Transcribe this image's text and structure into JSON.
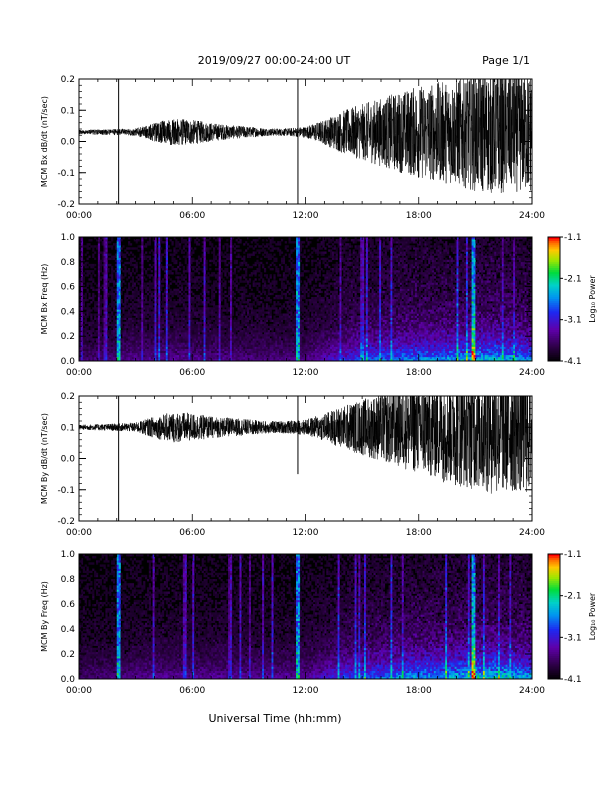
{
  "header": {
    "title": "2019/09/27  00:00-24:00 UT",
    "page": "Page 1/1"
  },
  "chart_data": [
    {
      "type": "line",
      "ylabel": "MCM Bx dB/dt (nT/sec)",
      "xlim": [
        0,
        24
      ],
      "ylim": [
        -0.2,
        0.2
      ],
      "x_ticks": [
        "00:00",
        "06:00",
        "12:00",
        "18:00",
        "24:00"
      ],
      "y_ticks": [
        "-0.2",
        "-0.1",
        "0.0",
        "0.1",
        "0.2"
      ],
      "y_tick_values": [
        -0.2,
        -0.1,
        0.0,
        0.1,
        0.2
      ],
      "baseline": 0.03,
      "envelope": {
        "hours": [
          0,
          2,
          3,
          4,
          5,
          6,
          7,
          8,
          9,
          10,
          11,
          12,
          13,
          14,
          15,
          16,
          17,
          18,
          19,
          20,
          21,
          22,
          23,
          24
        ],
        "amplitude": [
          0.007,
          0.01,
          0.012,
          0.03,
          0.045,
          0.04,
          0.03,
          0.022,
          0.018,
          0.012,
          0.012,
          0.018,
          0.04,
          0.07,
          0.09,
          0.11,
          0.13,
          0.15,
          0.16,
          0.17,
          0.19,
          0.2,
          0.19,
          0.2
        ]
      },
      "spikes": [
        {
          "hour": 2.1,
          "min": -0.2,
          "max": 0.2
        },
        {
          "hour": 11.6,
          "min": -0.2,
          "max": 0.2
        }
      ]
    },
    {
      "type": "heatmap",
      "ylabel": "MCM Bx Freq (Hz)",
      "xlim": [
        0,
        24
      ],
      "ylim": [
        0,
        1.0
      ],
      "x_ticks": [
        "00:00",
        "06:00",
        "12:00",
        "18:00",
        "24:00"
      ],
      "y_ticks": [
        "0.0",
        "0.2",
        "0.4",
        "0.6",
        "0.8",
        "1.0"
      ],
      "y_tick_values": [
        0.0,
        0.2,
        0.4,
        0.6,
        0.8,
        1.0
      ],
      "colorbar": {
        "label": "Log₁₀ Power",
        "range": [
          -4.1,
          -1.1
        ],
        "ticks": [
          "-1.1",
          "-2.1",
          "-3.1",
          "-4.1"
        ],
        "tick_values": [
          -1.1,
          -2.1,
          -3.1,
          -4.1
        ]
      },
      "spike_hours": [
        2.1,
        11.6,
        20.9
      ],
      "activity_hours": [
        0,
        4,
        8,
        12,
        14,
        16,
        18,
        20,
        22,
        24
      ],
      "activity_level": [
        0.2,
        0.3,
        0.25,
        0.25,
        0.5,
        0.65,
        0.7,
        0.75,
        0.85,
        0.7
      ]
    },
    {
      "type": "line",
      "ylabel": "MCM By dB/dt (nT/sec)",
      "xlim": [
        0,
        24
      ],
      "ylim": [
        -0.2,
        0.2
      ],
      "x_ticks": [
        "00:00",
        "06:00",
        "12:00",
        "18:00",
        "24:00"
      ],
      "y_ticks": [
        "-0.2",
        "-0.1",
        "0.0",
        "0.1",
        "0.2"
      ],
      "y_tick_values": [
        -0.2,
        -0.1,
        0.0,
        0.1,
        0.2
      ],
      "baseline": 0.1,
      "envelope": {
        "hours": [
          0,
          2,
          3,
          4,
          5,
          6,
          7,
          8,
          9,
          10,
          11,
          12,
          13,
          14,
          15,
          16,
          17,
          18,
          19,
          20,
          21,
          22,
          23,
          24
        ],
        "amplitude": [
          0.008,
          0.012,
          0.015,
          0.035,
          0.05,
          0.045,
          0.035,
          0.03,
          0.025,
          0.02,
          0.02,
          0.025,
          0.045,
          0.07,
          0.09,
          0.11,
          0.13,
          0.15,
          0.17,
          0.19,
          0.2,
          0.22,
          0.21,
          0.22
        ]
      },
      "spikes": [
        {
          "hour": 2.1,
          "min": -0.2,
          "max": 0.2
        },
        {
          "hour": 11.6,
          "min": -0.05,
          "max": 0.2
        }
      ]
    },
    {
      "type": "heatmap",
      "ylabel": "MCM By Freq (Hz)",
      "xlim": [
        0,
        24
      ],
      "ylim": [
        0,
        1.0
      ],
      "x_ticks": [
        "00:00",
        "06:00",
        "12:00",
        "18:00",
        "24:00"
      ],
      "y_ticks": [
        "0.0",
        "0.2",
        "0.4",
        "0.6",
        "0.8",
        "1.0"
      ],
      "y_tick_values": [
        0.0,
        0.2,
        0.4,
        0.6,
        0.8,
        1.0
      ],
      "colorbar": {
        "label": "Log₁₀ Power",
        "range": [
          -4.1,
          -1.1
        ],
        "ticks": [
          "-1.1",
          "-2.1",
          "-3.1",
          "-4.1"
        ],
        "tick_values": [
          -1.1,
          -2.1,
          -3.1,
          -4.1
        ]
      },
      "spike_hours": [
        2.1,
        11.6,
        20.9
      ],
      "activity_hours": [
        0,
        4,
        8,
        12,
        14,
        16,
        18,
        20,
        22,
        24
      ],
      "activity_level": [
        0.2,
        0.3,
        0.3,
        0.3,
        0.55,
        0.65,
        0.75,
        0.8,
        0.9,
        0.75
      ]
    }
  ],
  "xlabel": "Universal Time (hh:mm)"
}
